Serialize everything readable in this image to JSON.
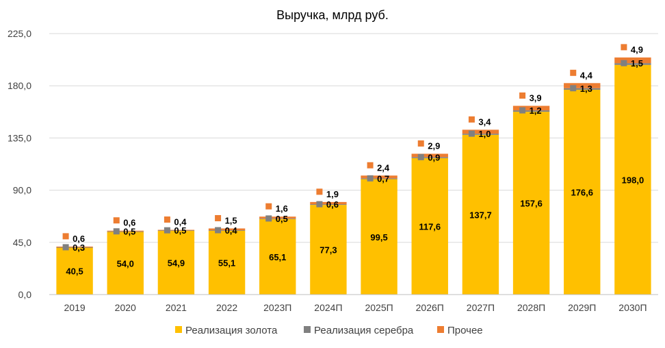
{
  "chart_data": {
    "type": "bar",
    "stacked": true,
    "title": "Выручка, млрд руб.",
    "categories": [
      "2019",
      "2020",
      "2021",
      "2022",
      "2023П",
      "2024П",
      "2025П",
      "2026П",
      "2027П",
      "2028П",
      "2029П",
      "2030П"
    ],
    "series": [
      {
        "name": "Реализация золота",
        "values": [
          40.5,
          54.0,
          54.9,
          55.1,
          65.1,
          77.3,
          99.5,
          117.6,
          137.7,
          157.6,
          176.6,
          198.0
        ],
        "labels": [
          "40,5",
          "54,0",
          "54,9",
          "55,1",
          "65,1",
          "77,3",
          "99,5",
          "117,6",
          "137,7",
          "157,6",
          "176,6",
          "198,0"
        ]
      },
      {
        "name": "Реализация серебра",
        "values": [
          0.3,
          0.5,
          0.5,
          0.4,
          0.5,
          0.6,
          0.7,
          0.9,
          1.0,
          1.2,
          1.3,
          1.5
        ],
        "labels": [
          "0,3",
          "0,5",
          "0,5",
          "0,4",
          "0,5",
          "0,6",
          "0,7",
          "0,9",
          "1,0",
          "1,2",
          "1,3",
          "1,5"
        ]
      },
      {
        "name": "Прочее",
        "values": [
          0.6,
          0.6,
          0.4,
          1.5,
          1.6,
          1.9,
          2.4,
          2.9,
          3.4,
          3.9,
          4.4,
          4.9
        ],
        "labels": [
          "0,6",
          "0,6",
          "0,4",
          "1,5",
          "1,6",
          "1,9",
          "2,4",
          "2,9",
          "3,4",
          "3,9",
          "4,4",
          "4,9"
        ]
      }
    ],
    "ylim": [
      0,
      225
    ],
    "yticks": [
      0,
      45,
      90,
      135,
      180,
      225
    ],
    "ytick_labels": [
      "0,0",
      "45,0",
      "90,0",
      "135,0",
      "180,0",
      "225,0"
    ],
    "grid": true,
    "legend_position": "bottom",
    "colors": {
      "gold": "#FFC000",
      "silver": "#808080",
      "other": "#ED7D31",
      "grid": "#D9D9D9",
      "axis": "#BFBFBF",
      "text": "#000000",
      "tick_text": "#404040"
    }
  }
}
